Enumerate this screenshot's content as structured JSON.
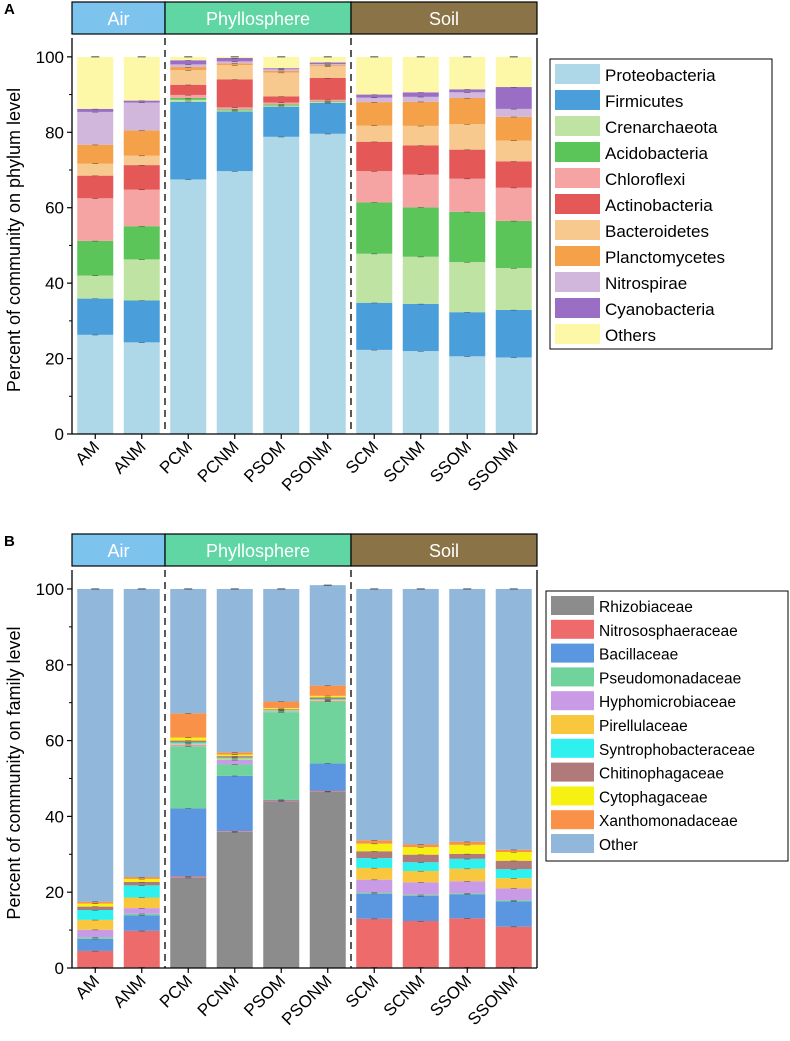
{
  "chart_data": [
    {
      "type": "bar",
      "stacked": true,
      "panel_label": "A",
      "ylabel": "Percent of community on phylum level",
      "ylim": [
        0,
        105
      ],
      "yticks": [
        0,
        20,
        40,
        60,
        80,
        100
      ],
      "categories": [
        "AM",
        "ANM",
        "PCM",
        "PCNM",
        "PSOM",
        "PSONM",
        "SCM",
        "SCNM",
        "SSOM",
        "SSONM"
      ],
      "groups": [
        {
          "name": "Air",
          "color": "#7cc3ee",
          "range": [
            0,
            1
          ]
        },
        {
          "name": "Phyllosphere",
          "color": "#5fd6a3",
          "range": [
            2,
            5
          ]
        },
        {
          "name": "Soil",
          "color": "#8b7348",
          "range": [
            6,
            9
          ]
        }
      ],
      "series": [
        {
          "name": "Proteobacteria",
          "color": "#aed7e8",
          "values": [
            26.3,
            24.3,
            67.5,
            69.7,
            78.8,
            79.6,
            22.3,
            22.0,
            20.6,
            20.3
          ]
        },
        {
          "name": "Firmicutes",
          "color": "#4a9fdb",
          "values": [
            9.6,
            11.1,
            20.6,
            15.8,
            8.0,
            8.2,
            12.5,
            12.5,
            11.7,
            12.6
          ]
        },
        {
          "name": "Crenarchaeota",
          "color": "#bfe3a2",
          "values": [
            6.1,
            10.9,
            0.5,
            0.3,
            0.3,
            0.2,
            13.0,
            12.5,
            13.3,
            11.1
          ]
        },
        {
          "name": "Acidobacteria",
          "color": "#5cc55a",
          "values": [
            9.2,
            8.8,
            0.5,
            0.3,
            0.3,
            0.2,
            13.6,
            13.1,
            13.3,
            12.5
          ]
        },
        {
          "name": "Chloroflexi",
          "color": "#f5a3a3",
          "values": [
            11.3,
            9.7,
            0.8,
            0.5,
            0.5,
            0.4,
            8.3,
            8.7,
            8.8,
            8.8
          ]
        },
        {
          "name": "Actinobacteria",
          "color": "#e55858",
          "values": [
            6.0,
            6.5,
            2.7,
            7.4,
            1.6,
            5.8,
            7.8,
            7.7,
            7.7,
            7.0
          ]
        },
        {
          "name": "Bacteroidetes",
          "color": "#f7c98f",
          "values": [
            3.2,
            2.5,
            3.9,
            3.8,
            6.3,
            3.1,
            4.3,
            5.2,
            6.8,
            5.5
          ]
        },
        {
          "name": "Planctomycetes",
          "color": "#f5a14a",
          "values": [
            5.0,
            6.7,
            0.8,
            0.5,
            0.5,
            0.3,
            6.2,
            6.4,
            6.9,
            6.3
          ]
        },
        {
          "name": "Nitrospirae",
          "color": "#d2b7dd",
          "values": [
            8.7,
            7.4,
            0.7,
            0.5,
            0.4,
            0.3,
            1.2,
            1.3,
            1.5,
            2.1
          ]
        },
        {
          "name": "Cyanobacteria",
          "color": "#9b6ec6",
          "values": [
            0.8,
            0.5,
            1.1,
            0.9,
            0.3,
            0.4,
            0.8,
            1.2,
            0.8,
            5.8
          ]
        },
        {
          "name": "Others",
          "color": "#fdf8a8",
          "values": [
            13.8,
            11.6,
            0.9,
            0.3,
            3.0,
            1.5,
            10.0,
            9.4,
            8.6,
            8.0
          ]
        }
      ]
    },
    {
      "type": "bar",
      "stacked": true,
      "panel_label": "B",
      "ylabel": "Percent of community on family level",
      "ylim": [
        0,
        105
      ],
      "yticks": [
        0,
        20,
        40,
        60,
        80,
        100
      ],
      "categories": [
        "AM",
        "ANM",
        "PCM",
        "PCNM",
        "PSOM",
        "PSONM",
        "SCM",
        "SCNM",
        "SSOM",
        "SSONM"
      ],
      "groups": [
        {
          "name": "Air",
          "color": "#7cc3ee",
          "range": [
            0,
            1
          ]
        },
        {
          "name": "Phyllosphere",
          "color": "#5fd6a3",
          "range": [
            2,
            5
          ]
        },
        {
          "name": "Soil",
          "color": "#8b7348",
          "range": [
            6,
            9
          ]
        }
      ],
      "series": [
        {
          "name": "Rhizobiaceae",
          "color": "#8c8c8c",
          "values": [
            0.2,
            0.2,
            23.8,
            35.9,
            44.0,
            46.5,
            0.2,
            0.2,
            0.2,
            0.2
          ]
        },
        {
          "name": "Nitrososphaeraceae",
          "color": "#ee6b6b",
          "values": [
            4.3,
            9.6,
            0.3,
            0.2,
            0.2,
            0.2,
            12.8,
            12.2,
            12.9,
            10.7
          ]
        },
        {
          "name": "Bacillaceae",
          "color": "#5b97e0",
          "values": [
            3.2,
            4.1,
            18.0,
            14.6,
            0.2,
            7.3,
            6.6,
            6.6,
            6.3,
            6.7
          ]
        },
        {
          "name": "Pseudomonadaceae",
          "color": "#6fd39b",
          "values": [
            0.4,
            0.4,
            16.4,
            3.0,
            23.1,
            16.3,
            0.3,
            0.3,
            0.3,
            0.3
          ]
        },
        {
          "name": "Hyphomicrobiaceae",
          "color": "#c99be6",
          "values": [
            2.0,
            1.5,
            0.4,
            1.2,
            0.2,
            0.2,
            3.4,
            3.3,
            3.2,
            3.1
          ]
        },
        {
          "name": "Pirellulaceae",
          "color": "#f9c73d",
          "values": [
            2.6,
            2.8,
            0.3,
            0.3,
            0.2,
            0.2,
            3.1,
            3.0,
            3.3,
            2.7
          ]
        },
        {
          "name": "Syntrophobacteraceae",
          "color": "#2ef0ee",
          "values": [
            2.6,
            3.2,
            0.3,
            0.3,
            0.2,
            0.2,
            2.6,
            2.3,
            2.6,
            2.4
          ]
        },
        {
          "name": "Chitinophagaceae",
          "color": "#b07a7a",
          "values": [
            0.9,
            0.9,
            0.5,
            0.4,
            0.2,
            0.5,
            1.8,
            2.0,
            1.3,
            2.2
          ]
        },
        {
          "name": "Cytophagaceae",
          "color": "#f7f013",
          "values": [
            0.8,
            0.8,
            0.8,
            0.4,
            0.3,
            0.4,
            2.0,
            2.0,
            2.4,
            2.3
          ]
        },
        {
          "name": "Xanthomonadaceae",
          "color": "#f99149",
          "values": [
            0.5,
            0.5,
            6.4,
            0.6,
            1.7,
            2.7,
            0.9,
            0.7,
            0.8,
            0.6
          ]
        },
        {
          "name": "Other",
          "color": "#91b7da",
          "values": [
            82.5,
            76.0,
            32.8,
            43.1,
            29.7,
            26.5,
            66.3,
            67.4,
            66.7,
            68.8
          ]
        }
      ]
    }
  ]
}
